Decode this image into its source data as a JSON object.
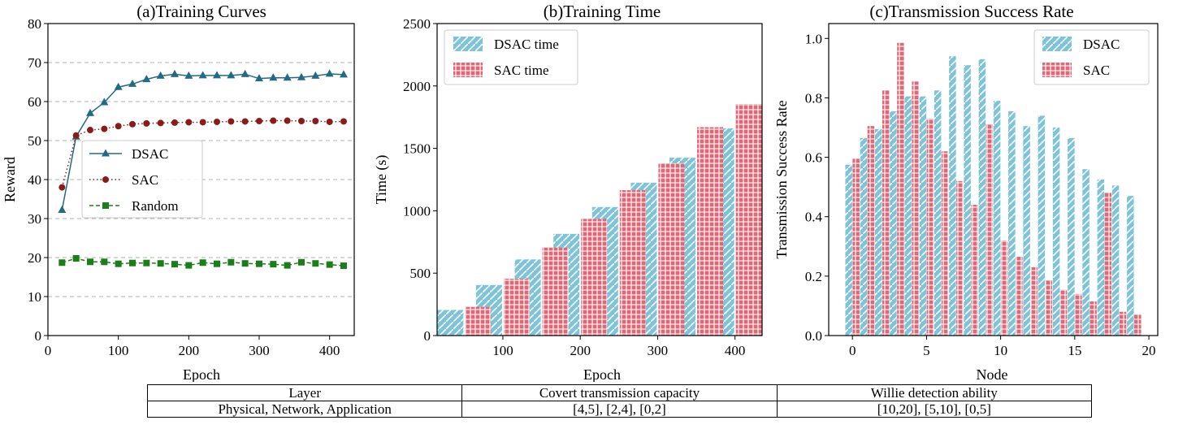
{
  "chart_data": [
    {
      "type": "line",
      "title": "(a)Training Curves",
      "xlabel": "Epoch",
      "ylabel": "Reward",
      "xlim": [
        0,
        435
      ],
      "ylim": [
        0,
        80
      ],
      "xticks": [
        0,
        100,
        200,
        300,
        400
      ],
      "yticks": [
        0,
        10,
        20,
        30,
        40,
        50,
        60,
        70,
        80
      ],
      "grid": "horizontal dashed",
      "legend_position": "center-left",
      "x": [
        20,
        40,
        60,
        80,
        100,
        120,
        140,
        160,
        180,
        200,
        220,
        240,
        260,
        280,
        300,
        320,
        340,
        360,
        380,
        400,
        420
      ],
      "series": [
        {
          "name": "DSAC",
          "color": "#236b85",
          "marker": "triangle",
          "line": "solid",
          "values": [
            32.2,
            51.0,
            57.0,
            59.8,
            63.7,
            64.5,
            65.7,
            66.6,
            67.0,
            66.6,
            66.7,
            66.7,
            66.7,
            67.0,
            65.9,
            66.1,
            66.1,
            66.2,
            66.6,
            67.1,
            66.9
          ]
        },
        {
          "name": "SAC",
          "color": "#8b1a1a",
          "marker": "circle",
          "line": "dotted",
          "values": [
            38.0,
            51.3,
            52.7,
            53.0,
            53.7,
            54.2,
            54.4,
            54.5,
            54.6,
            54.7,
            54.7,
            54.8,
            54.9,
            54.9,
            55.0,
            55.1,
            55.1,
            55.0,
            55.0,
            54.8,
            54.9
          ]
        },
        {
          "name": "Random",
          "color": "#1a7f1a",
          "marker": "square",
          "line": "dashed",
          "values": [
            18.7,
            19.8,
            18.9,
            18.9,
            18.4,
            18.6,
            18.6,
            18.5,
            18.3,
            18.0,
            18.7,
            18.4,
            18.8,
            18.5,
            18.4,
            18.3,
            18.0,
            18.8,
            18.5,
            18.2,
            17.9
          ]
        }
      ]
    },
    {
      "type": "bar",
      "title": "(b)Training Time",
      "xlabel": "Epoch",
      "ylabel": "Time (s)",
      "xlim": [
        15,
        435
      ],
      "ylim": [
        0,
        2500
      ],
      "xticks": [
        100,
        200,
        300,
        400
      ],
      "yticks": [
        0,
        500,
        1000,
        1500,
        2000,
        2500
      ],
      "legend_position": "top-left",
      "x": [
        50,
        100,
        150,
        200,
        250,
        300,
        350,
        400
      ],
      "series": [
        {
          "name": "DSAC time",
          "color": "#7ec4d8",
          "hatch": "diagonal",
          "values": [
            205,
            405,
            610,
            815,
            1030,
            1225,
            1425,
            1660
          ]
        },
        {
          "name": "SAC time",
          "color": "#d96a78",
          "hatch": "grid",
          "values": [
            230,
            455,
            705,
            935,
            1165,
            1380,
            1670,
            1855
          ]
        }
      ]
    },
    {
      "type": "bar",
      "title": "(c)Transmission Success Rate",
      "xlabel": "Node",
      "ylabel": "Transmission Success Rate",
      "xlim": [
        -1.6,
        20.6
      ],
      "ylim": [
        0,
        1.05
      ],
      "xticks": [
        0,
        5,
        10,
        15,
        20
      ],
      "yticks": [
        "0.0",
        "0.2",
        "0.4",
        "0.6",
        "0.8",
        "1.0"
      ],
      "legend_position": "top-right",
      "x": [
        0,
        1,
        2,
        3,
        4,
        5,
        6,
        7,
        8,
        9,
        10,
        11,
        12,
        13,
        14,
        15,
        16,
        17,
        18,
        19
      ],
      "series": [
        {
          "name": "DSAC",
          "color": "#7ec4d8",
          "hatch": "diagonal",
          "values": [
            0.575,
            0.665,
            0.695,
            0.755,
            0.805,
            0.805,
            0.825,
            0.94,
            0.91,
            0.93,
            0.79,
            0.755,
            0.705,
            0.74,
            0.7,
            0.665,
            0.56,
            0.525,
            0.505,
            0.47
          ]
        },
        {
          "name": "SAC",
          "color": "#d96a78",
          "hatch": "grid",
          "values": [
            0.595,
            0.705,
            0.825,
            0.985,
            0.855,
            0.73,
            0.62,
            0.52,
            0.44,
            0.71,
            0.32,
            0.265,
            0.23,
            0.185,
            0.155,
            0.14,
            0.115,
            0.48,
            0.08,
            0.07
          ]
        }
      ]
    }
  ],
  "table": {
    "headers": [
      "Layer",
      "Covert transmission capacity",
      "Willie detection ability"
    ],
    "rows": [
      [
        "Physical, Network, Application",
        "[4,5], [2,4], [0,2]",
        "[10,20], [5,10], [0,5]"
      ]
    ]
  }
}
